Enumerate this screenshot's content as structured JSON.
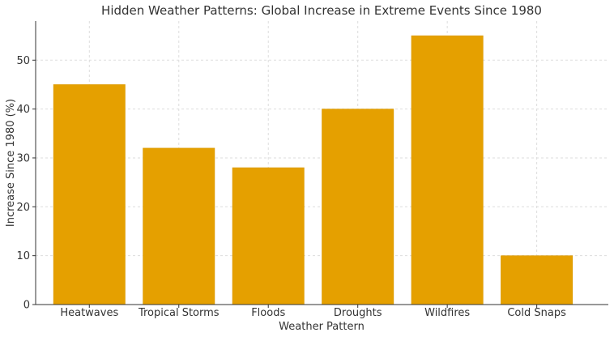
{
  "chart_data": {
    "type": "bar",
    "title": "Hidden Weather Patterns: Global Increase in Extreme Events Since 1980",
    "xlabel": "Weather Pattern",
    "ylabel": "Increase Since 1980 (%)",
    "categories": [
      "Heatwaves",
      "Tropical Storms",
      "Floods",
      "Droughts",
      "Wildfires",
      "Cold Snaps"
    ],
    "values": [
      45,
      32,
      28,
      40,
      55,
      10
    ],
    "ylim": [
      0,
      58
    ],
    "yticks": [
      0,
      10,
      20,
      30,
      40,
      50
    ],
    "grid": true,
    "bar_color": "#E5A000",
    "bar_edge_color": "#D99800",
    "grid_color": "#DDDDDD",
    "axis_color": "#333333"
  }
}
